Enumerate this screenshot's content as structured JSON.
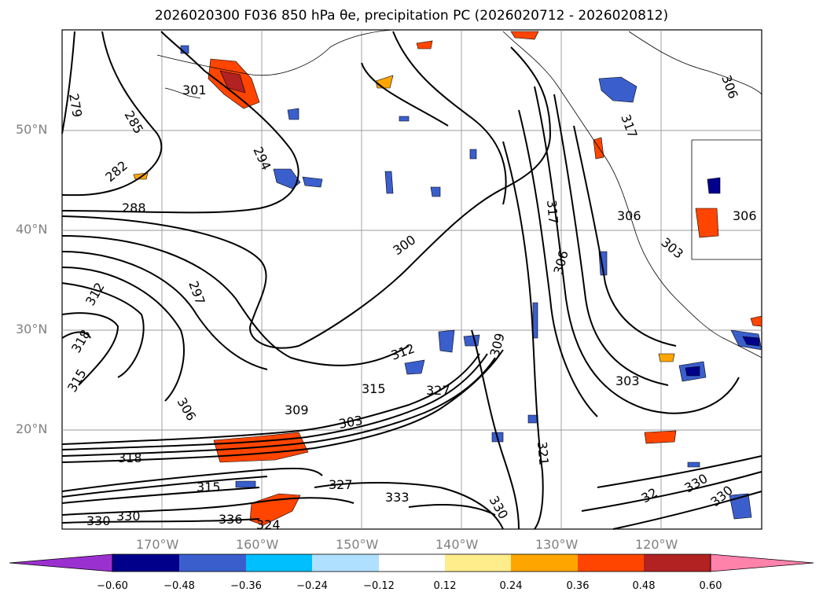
{
  "title": "2026020300 F036 850 hPa θe, precipitation PC (2026020712 - 2026020812)",
  "map": {
    "lat_labels": [
      "50°N",
      "40°N",
      "30°N",
      "20°N"
    ],
    "lon_labels": [
      "170°W",
      "160°W",
      "150°W",
      "140°W",
      "130°W",
      "120°W"
    ],
    "contour_labels": [
      "279",
      "285",
      "282",
      "288",
      "294",
      "301",
      "297",
      "300",
      "312",
      "318",
      "315",
      "306",
      "309",
      "312",
      "315",
      "327",
      "303",
      "306",
      "317",
      "309",
      "303",
      "321",
      "327",
      "333",
      "330",
      "336",
      "324",
      "330",
      "315",
      "306",
      "306",
      "303",
      "330",
      "306",
      "317",
      "318",
      "330",
      "32",
      "330"
    ]
  },
  "colorbar": {
    "colors": [
      "#9b30d0",
      "#00008b",
      "#3a5fcd",
      "#00bfff",
      "#b0e0ff",
      "#ffffff",
      "#ffec8b",
      "#ffa500",
      "#ff4500",
      "#b22222",
      "#ff82ab"
    ],
    "tick_labels": [
      "−0.60",
      "−0.48",
      "−0.36",
      "−0.24",
      "−0.12",
      "0.12",
      "0.24",
      "0.36",
      "0.48",
      "0.60"
    ]
  }
}
